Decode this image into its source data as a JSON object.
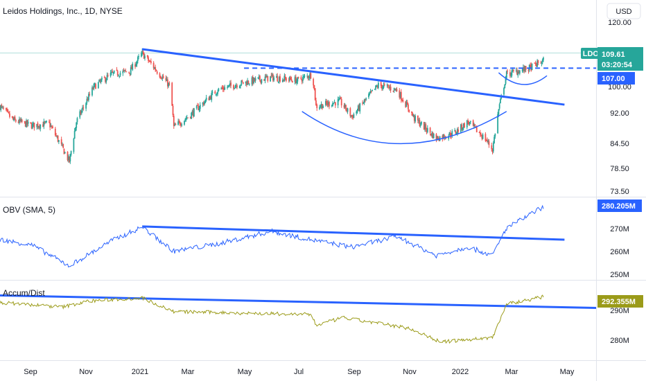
{
  "header": {
    "title": "Leidos Holdings, Inc., 1D, NYSE",
    "currency": "USD"
  },
  "colors": {
    "up": "#26a69a",
    "down": "#ef5350",
    "trend": "#2962ff",
    "obv": "#2962ff",
    "ad": "#9b9b19",
    "ticker_badge": "#26a69a",
    "level_badge": "#2962ff",
    "ad_badge": "#9b9b19"
  },
  "price_panel": {
    "ticker": "LDOS",
    "last": "109.61",
    "countdown": "03:20:54",
    "level": "107.00",
    "ticks": [
      "120.00",
      "100.00",
      "92.00",
      "84.50",
      "78.50",
      "73.50"
    ]
  },
  "obv_panel": {
    "label": "OBV (SMA, 5)",
    "value": "280.205M",
    "ticks": [
      "270M",
      "260M",
      "250M"
    ]
  },
  "ad_panel": {
    "label": "Accum/Dist",
    "value": "292.355M",
    "ticks": [
      "290M",
      "280M"
    ]
  },
  "x_axis": {
    "labels": [
      "Sep",
      "Nov",
      "2021",
      "Mar",
      "May",
      "Jul",
      "Sep",
      "Nov",
      "2022",
      "Mar",
      "May"
    ]
  },
  "chart_data": {
    "type": "candlestick",
    "title": "Leidos Holdings, Inc., 1D, NYSE",
    "x_range": [
      "2020-08-10",
      "2022-06-20"
    ],
    "price_scale": "log",
    "price_ylim": [
      72,
      124
    ],
    "price_anchors": [
      {
        "date": "2020-08-10",
        "close": 95.0
      },
      {
        "date": "2020-08-25",
        "close": 91.0
      },
      {
        "date": "2020-09-15",
        "close": 89.5
      },
      {
        "date": "2020-10-05",
        "close": 90.0
      },
      {
        "date": "2020-10-28",
        "close": 80.0
      },
      {
        "date": "2020-11-05",
        "close": 90.5
      },
      {
        "date": "2020-11-25",
        "close": 101.0
      },
      {
        "date": "2020-12-15",
        "close": 105.0
      },
      {
        "date": "2021-01-05",
        "close": 106.0
      },
      {
        "date": "2021-01-19",
        "close": 112.0
      },
      {
        "date": "2021-02-05",
        "close": 106.0
      },
      {
        "date": "2021-02-20",
        "close": 101.0
      },
      {
        "date": "2021-02-24",
        "close": 89.0
      },
      {
        "date": "2021-03-15",
        "close": 92.5
      },
      {
        "date": "2021-04-15",
        "close": 100.0
      },
      {
        "date": "2021-05-10",
        "close": 102.0
      },
      {
        "date": "2021-06-15",
        "close": 104.0
      },
      {
        "date": "2021-07-15",
        "close": 103.0
      },
      {
        "date": "2021-08-01",
        "close": 105.0
      },
      {
        "date": "2021-08-05",
        "close": 95.0
      },
      {
        "date": "2021-09-01",
        "close": 96.5
      },
      {
        "date": "2021-09-15",
        "close": 92.0
      },
      {
        "date": "2021-10-15",
        "close": 101.5
      },
      {
        "date": "2021-11-05",
        "close": 100.0
      },
      {
        "date": "2021-11-25",
        "close": 91.5
      },
      {
        "date": "2021-12-20",
        "close": 86.0
      },
      {
        "date": "2022-01-10",
        "close": 87.5
      },
      {
        "date": "2022-01-25",
        "close": 90.5
      },
      {
        "date": "2022-02-15",
        "close": 85.5
      },
      {
        "date": "2022-02-22",
        "close": 83.0
      },
      {
        "date": "2022-03-01",
        "close": 94.0
      },
      {
        "date": "2022-03-10",
        "close": 105.0
      },
      {
        "date": "2022-04-05",
        "close": 107.0
      },
      {
        "date": "2022-04-21",
        "close": 109.61
      }
    ],
    "resistance_level": 107.0,
    "obv_ylim": [
      246,
      283
    ],
    "obv_anchors": [
      {
        "date": "2020-08-10",
        "value": 264.5
      },
      {
        "date": "2020-09-15",
        "value": 262.0
      },
      {
        "date": "2020-10-28",
        "value": 252.0
      },
      {
        "date": "2020-12-15",
        "value": 264.0
      },
      {
        "date": "2021-01-19",
        "value": 270.5
      },
      {
        "date": "2021-02-24",
        "value": 259.0
      },
      {
        "date": "2021-04-15",
        "value": 262.5
      },
      {
        "date": "2021-06-15",
        "value": 268.5
      },
      {
        "date": "2021-08-05",
        "value": 264.0
      },
      {
        "date": "2021-09-15",
        "value": 261.0
      },
      {
        "date": "2021-11-05",
        "value": 266.0
      },
      {
        "date": "2021-12-20",
        "value": 257.0
      },
      {
        "date": "2022-01-25",
        "value": 261.0
      },
      {
        "date": "2022-02-22",
        "value": 257.0
      },
      {
        "date": "2022-03-10",
        "value": 270.0
      },
      {
        "date": "2022-04-21",
        "value": 280.205
      }
    ],
    "ad_ylim": [
      272,
      297
    ],
    "ad_anchors": [
      {
        "date": "2020-08-10",
        "value": 290.5
      },
      {
        "date": "2020-10-20",
        "value": 289.0
      },
      {
        "date": "2020-11-20",
        "value": 291.0
      },
      {
        "date": "2021-01-19",
        "value": 292.0
      },
      {
        "date": "2021-02-24",
        "value": 287.5
      },
      {
        "date": "2021-05-15",
        "value": 287.0
      },
      {
        "date": "2021-07-31",
        "value": 286.5
      },
      {
        "date": "2021-08-05",
        "value": 283.0
      },
      {
        "date": "2021-09-05",
        "value": 285.5
      },
      {
        "date": "2021-11-20",
        "value": 282.0
      },
      {
        "date": "2021-12-25",
        "value": 277.5
      },
      {
        "date": "2022-02-22",
        "value": 279.0
      },
      {
        "date": "2022-03-10",
        "value": 290.0
      },
      {
        "date": "2022-04-21",
        "value": 292.355
      }
    ]
  }
}
